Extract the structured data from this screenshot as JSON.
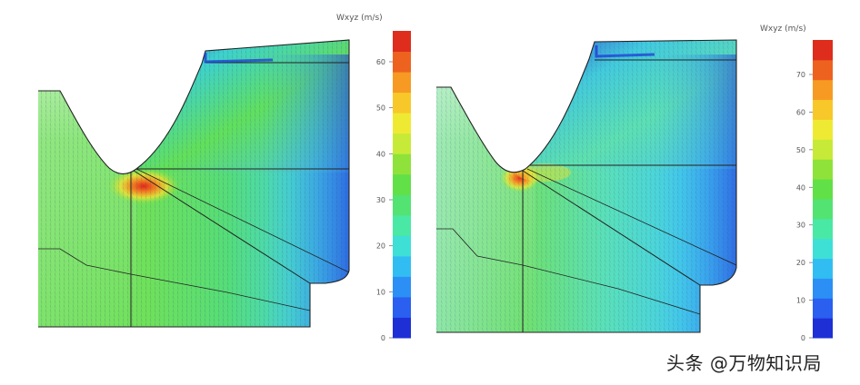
{
  "panels": [
    {
      "title": "Wxyz (m/s)",
      "colorbar": {
        "ticks": [
          "0",
          "10",
          "20",
          "30",
          "40",
          "50",
          "60"
        ],
        "colors": [
          "#1e2fd6",
          "#2a5ff0",
          "#2c8ff5",
          "#32bdf2",
          "#3ee0d6",
          "#4ae8a5",
          "#53e372",
          "#62e048",
          "#8fe23a",
          "#c7ea38",
          "#eeea33",
          "#f8c82a",
          "#f79a23",
          "#ee6220",
          "#de2d1c"
        ]
      }
    },
    {
      "title": "Wxyz (m/s)",
      "colorbar": {
        "ticks": [
          "0",
          "10",
          "20",
          "30",
          "40",
          "50",
          "60",
          "70"
        ],
        "colors": [
          "#1e2fd6",
          "#2a5ff0",
          "#2c8ff5",
          "#32bdf2",
          "#3ee0d6",
          "#4ae8a5",
          "#53e372",
          "#62e048",
          "#8fe23a",
          "#c7ea38",
          "#eeea33",
          "#f8c82a",
          "#f79a23",
          "#ee6220",
          "#de2d1c"
        ]
      }
    }
  ],
  "watermark": "头条 @万物知识局"
}
